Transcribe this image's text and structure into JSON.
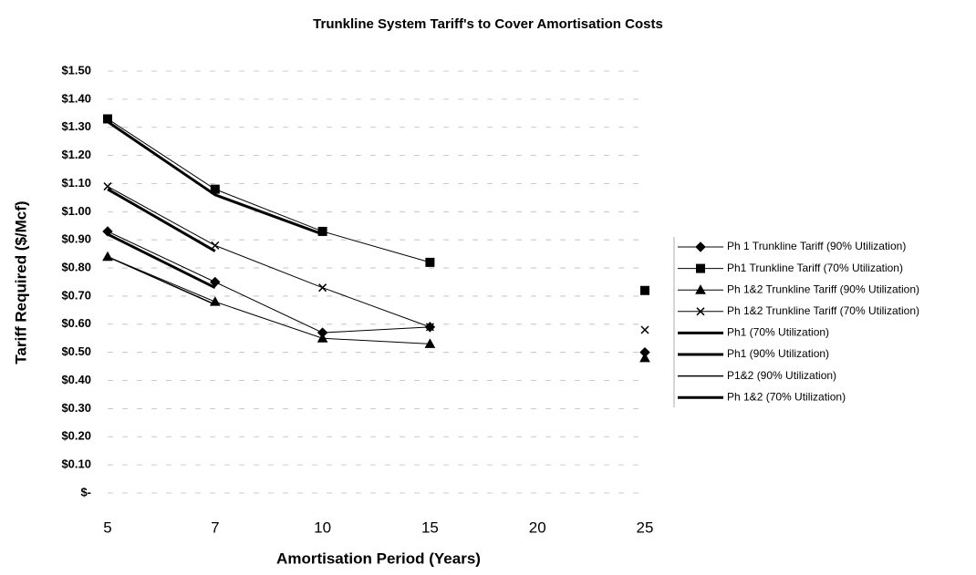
{
  "chart_data": {
    "type": "line",
    "title": "Trunkline System Tariff's to Cover Amortisation Costs",
    "x_label": "Amortisation Period (Years)",
    "y_label": "Tariff Required ($/Mcf)",
    "categories": [
      "5",
      "7",
      "10",
      "15",
      "20",
      "25"
    ],
    "ylim": [
      0,
      1.5
    ],
    "yticks": [
      {
        "value": 0,
        "label": "$-"
      },
      {
        "value": 0.1,
        "label": "$0.10"
      },
      {
        "value": 0.2,
        "label": "$0.20"
      },
      {
        "value": 0.3,
        "label": "$0.30"
      },
      {
        "value": 0.4,
        "label": "$0.40"
      },
      {
        "value": 0.5,
        "label": "$0.50"
      },
      {
        "value": 0.6,
        "label": "$0.60"
      },
      {
        "value": 0.7,
        "label": "$0.70"
      },
      {
        "value": 0.8,
        "label": "$0.80"
      },
      {
        "value": 0.9,
        "label": "$0.90"
      },
      {
        "value": 1.0,
        "label": "$1.00"
      },
      {
        "value": 1.1,
        "label": "$1.10"
      },
      {
        "value": 1.2,
        "label": "$1.20"
      },
      {
        "value": 1.3,
        "label": "$1.30"
      },
      {
        "value": 1.4,
        "label": "$1.40"
      },
      {
        "value": 1.5,
        "label": "$1.50"
      }
    ],
    "grid": true,
    "legend": "right",
    "series": [
      {
        "name": "Ph 1 Trunkline Tariff (90% Utilization)",
        "color": "#000000",
        "marker": "diamond",
        "width": 1,
        "values": [
          0.93,
          0.75,
          0.57,
          0.59,
          null,
          0.5
        ]
      },
      {
        "name": "Ph1 Trunkline Tariff (70% Utilization)",
        "color": "#000000",
        "marker": "square",
        "width": 1,
        "values": [
          1.33,
          1.08,
          0.93,
          0.82,
          null,
          0.72
        ]
      },
      {
        "name": "Ph 1&2 Trunkline Tariff (90% Utilization)",
        "color": "#000000",
        "marker": "triangle",
        "width": 1,
        "values": [
          0.84,
          0.68,
          0.55,
          0.53,
          null,
          0.48
        ]
      },
      {
        "name": "Ph 1&2 Trunkline Tariff (70% Utilization)",
        "color": "#000000",
        "marker": "x",
        "width": 1,
        "values": [
          1.09,
          0.88,
          0.73,
          0.59,
          null,
          0.58
        ]
      },
      {
        "name": "Ph1 (70% Utilization)",
        "color": "#000000",
        "marker": "none",
        "width": 3,
        "values": [
          1.32,
          1.06,
          0.92,
          null,
          null,
          null
        ]
      },
      {
        "name": "Ph1 (90% Utilization)",
        "color": "#000000",
        "marker": "none",
        "width": 3,
        "values": [
          0.92,
          0.73,
          null,
          null,
          null,
          null
        ]
      },
      {
        "name": "P1&2 (90% Utilization)",
        "color": "#000000",
        "marker": "none",
        "width": 1.5,
        "values": [
          0.84,
          0.67,
          null,
          null,
          null,
          null
        ]
      },
      {
        "name": "Ph 1&2 (70% Utilization)",
        "color": "#000000",
        "marker": "none",
        "width": 3,
        "values": [
          1.08,
          0.86,
          null,
          null,
          null,
          null
        ]
      }
    ]
  }
}
